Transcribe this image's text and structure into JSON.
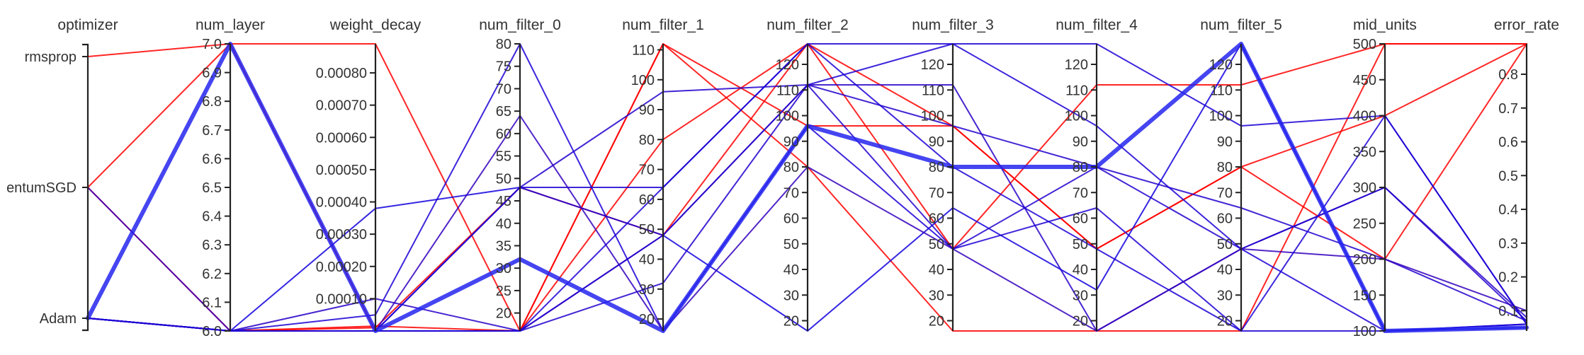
{
  "chart_data": {
    "type": "parallel_coordinates",
    "axes": [
      {
        "key": "optimizer",
        "label": "optimizer",
        "kind": "categorical",
        "categories": [
          "Adam",
          "MomentumSGD",
          "rmsprop"
        ],
        "category_labels": [
          "Adam",
          "entumSGD",
          "rmsprop"
        ]
      },
      {
        "key": "num_layer",
        "label": "num_layer",
        "kind": "numeric",
        "min": 6.0,
        "max": 7.0,
        "ticks": [
          6.0,
          6.1,
          6.2,
          6.3,
          6.4,
          6.5,
          6.6,
          6.7,
          6.8,
          6.9,
          7.0
        ],
        "tick_labels": [
          "6.0",
          "6.1",
          "6.2",
          "6.3",
          "6.4",
          "6.5",
          "6.6",
          "6.7",
          "6.8",
          "6.9",
          "7.0"
        ]
      },
      {
        "key": "weight_decay",
        "label": "weight_decay",
        "kind": "numeric",
        "min": 0.0,
        "max": 0.00089,
        "ticks": [
          0.0001,
          0.0002,
          0.0003,
          0.0004,
          0.0005,
          0.0006,
          0.0007,
          0.0008
        ],
        "tick_labels": [
          "0.00010",
          "0.00020",
          "0.00030",
          "0.00040",
          "0.00050",
          "0.00060",
          "0.00070",
          "0.00080"
        ]
      },
      {
        "key": "num_filter_0",
        "label": "num_filter_0",
        "kind": "numeric",
        "min": 16,
        "max": 80,
        "ticks": [
          20,
          25,
          30,
          35,
          40,
          45,
          50,
          55,
          60,
          65,
          70,
          75,
          80
        ],
        "tick_labels": [
          "20",
          "25",
          "30",
          "35",
          "40",
          "45",
          "50",
          "55",
          "60",
          "65",
          "70",
          "75",
          "80"
        ]
      },
      {
        "key": "num_filter_1",
        "label": "num_filter_1",
        "kind": "numeric",
        "min": 16,
        "max": 112,
        "ticks": [
          20,
          30,
          40,
          50,
          60,
          70,
          80,
          90,
          100,
          110
        ],
        "tick_labels": [
          "20",
          "30",
          "40",
          "50",
          "60",
          "70",
          "80",
          "90",
          "100",
          "110"
        ]
      },
      {
        "key": "num_filter_2",
        "label": "num_filter_2",
        "kind": "numeric",
        "min": 16,
        "max": 128,
        "ticks": [
          20,
          30,
          40,
          50,
          60,
          70,
          80,
          90,
          100,
          110,
          120
        ],
        "tick_labels": [
          "20",
          "30",
          "40",
          "50",
          "60",
          "70",
          "80",
          "90",
          "100",
          "110",
          "120"
        ]
      },
      {
        "key": "num_filter_3",
        "label": "num_filter_3",
        "kind": "numeric",
        "min": 16,
        "max": 128,
        "ticks": [
          20,
          30,
          40,
          50,
          60,
          70,
          80,
          90,
          100,
          110,
          120
        ],
        "tick_labels": [
          "20",
          "30",
          "40",
          "50",
          "60",
          "70",
          "80",
          "90",
          "100",
          "110",
          "120"
        ]
      },
      {
        "key": "num_filter_4",
        "label": "num_filter_4",
        "kind": "numeric",
        "min": 16,
        "max": 128,
        "ticks": [
          20,
          30,
          40,
          50,
          60,
          70,
          80,
          90,
          100,
          110,
          120
        ],
        "tick_labels": [
          "20",
          "30",
          "40",
          "50",
          "60",
          "70",
          "80",
          "90",
          "100",
          "110",
          "120"
        ]
      },
      {
        "key": "num_filter_5",
        "label": "num_filter_5",
        "kind": "numeric",
        "min": 16,
        "max": 128,
        "ticks": [
          20,
          30,
          40,
          50,
          60,
          70,
          80,
          90,
          100,
          110,
          120
        ],
        "tick_labels": [
          "20",
          "30",
          "40",
          "50",
          "60",
          "70",
          "80",
          "90",
          "100",
          "110",
          "120"
        ]
      },
      {
        "key": "mid_units",
        "label": "mid_units",
        "kind": "numeric",
        "min": 100,
        "max": 500,
        "ticks": [
          100,
          150,
          200,
          250,
          300,
          350,
          400,
          450,
          500
        ],
        "tick_labels": [
          "100",
          "150",
          "200",
          "250",
          "300",
          "350",
          "400",
          "450",
          "500"
        ]
      },
      {
        "key": "error_rate",
        "label": "error_rate",
        "kind": "numeric",
        "min": 0.04,
        "max": 0.89,
        "ticks": [
          0.1,
          0.2,
          0.3,
          0.4,
          0.5,
          0.6,
          0.7,
          0.8
        ],
        "tick_labels": [
          "0.1",
          "0.2",
          "0.3",
          "0.4",
          "0.5",
          "0.6",
          "0.7",
          "0.8"
        ]
      }
    ],
    "trials": [
      {
        "optimizer": "rmsprop",
        "num_layer": 7.0,
        "weight_decay": 0.00089,
        "num_filter_0": 16,
        "num_filter_1": 112,
        "num_filter_2": 80,
        "num_filter_3": 16,
        "num_filter_4": 16,
        "num_filter_5": 16,
        "mid_units": 500,
        "error_rate": 0.89
      },
      {
        "optimizer": "MomentumSGD",
        "num_layer": 7.0,
        "weight_decay": 0.0,
        "num_filter_0": 16,
        "num_filter_1": 80,
        "num_filter_2": 128,
        "num_filter_3": 96,
        "num_filter_4": 48,
        "num_filter_5": 80,
        "mid_units": 200,
        "error_rate": 0.89
      },
      {
        "optimizer": "MomentumSGD",
        "num_layer": 6.0,
        "weight_decay": 1e-05,
        "num_filter_0": 48,
        "num_filter_1": 48,
        "num_filter_2": 128,
        "num_filter_3": 48,
        "num_filter_4": 112,
        "num_filter_5": 112,
        "mid_units": 500,
        "error_rate": 0.89
      },
      {
        "optimizer": "Adam",
        "num_layer": 6.0,
        "weight_decay": 1.5e-05,
        "num_filter_0": 16,
        "num_filter_1": 112,
        "num_filter_2": 96,
        "num_filter_3": 96,
        "num_filter_4": 48,
        "num_filter_5": 80,
        "mid_units": 400,
        "error_rate": 0.89
      },
      {
        "optimizer": "Adam",
        "num_layer": 7.0,
        "weight_decay": 0.0,
        "num_filter_0": 32,
        "num_filter_1": 16,
        "num_filter_2": 96,
        "num_filter_3": 80,
        "num_filter_4": 80,
        "num_filter_5": 128,
        "mid_units": 100,
        "error_rate": 0.05
      },
      {
        "optimizer": "Adam",
        "num_layer": 6.0,
        "weight_decay": 0.0,
        "num_filter_0": 16,
        "num_filter_1": 48,
        "num_filter_2": 112,
        "num_filter_3": 128,
        "num_filter_4": 128,
        "num_filter_5": 96,
        "mid_units": 400,
        "error_rate": 0.06
      },
      {
        "optimizer": "Adam",
        "num_layer": 6.0,
        "weight_decay": 0.0,
        "num_filter_0": 48,
        "num_filter_1": 96,
        "num_filter_2": 112,
        "num_filter_3": 96,
        "num_filter_4": 80,
        "num_filter_5": 64,
        "mid_units": 200,
        "error_rate": 0.07
      },
      {
        "optimizer": "Adam",
        "num_layer": 6.0,
        "weight_decay": 0.0001,
        "num_filter_0": 16,
        "num_filter_1": 48,
        "num_filter_2": 112,
        "num_filter_3": 112,
        "num_filter_4": 16,
        "num_filter_5": 48,
        "mid_units": 300,
        "error_rate": 0.08
      },
      {
        "optimizer": "Adam",
        "num_layer": 6.0,
        "weight_decay": 0.0,
        "num_filter_0": 48,
        "num_filter_1": 64,
        "num_filter_2": 128,
        "num_filter_3": 128,
        "num_filter_4": 96,
        "num_filter_5": 48,
        "mid_units": 100,
        "error_rate": 0.06
      },
      {
        "optimizer": "Adam",
        "num_layer": 6.0,
        "weight_decay": 0.00038,
        "num_filter_0": 48,
        "num_filter_1": 48,
        "num_filter_2": 16,
        "num_filter_3": 64,
        "num_filter_4": 32,
        "num_filter_5": 128,
        "mid_units": 100,
        "error_rate": 0.05
      },
      {
        "optimizer": "Adam",
        "num_layer": 6.0,
        "weight_decay": 5e-05,
        "num_filter_0": 80,
        "num_filter_1": 16,
        "num_filter_2": 96,
        "num_filter_3": 48,
        "num_filter_4": 64,
        "num_filter_5": 16,
        "mid_units": 100,
        "error_rate": 0.06
      },
      {
        "optimizer": "Adam",
        "num_layer": 6.0,
        "weight_decay": 0.0,
        "num_filter_0": 16,
        "num_filter_1": 32,
        "num_filter_2": 112,
        "num_filter_3": 48,
        "num_filter_4": 80,
        "num_filter_5": 48,
        "mid_units": 300,
        "error_rate": 0.07
      },
      {
        "optimizer": "MomentumSGD",
        "num_layer": 6.0,
        "weight_decay": 0.0,
        "num_filter_0": 64,
        "num_filter_1": 16,
        "num_filter_2": 80,
        "num_filter_3": 48,
        "num_filter_4": 16,
        "num_filter_5": 48,
        "mid_units": 200,
        "error_rate": 0.1
      },
      {
        "optimizer": "Adam",
        "num_layer": 6.0,
        "weight_decay": 0.0,
        "num_filter_0": 16,
        "num_filter_1": 64,
        "num_filter_2": 128,
        "num_filter_3": 80,
        "num_filter_4": 48,
        "num_filter_5": 16,
        "mid_units": 400,
        "error_rate": 0.06
      }
    ]
  },
  "colors": {
    "best": "#2424ee",
    "worst": "#f02020",
    "low": "#0000ee",
    "high": "#ff0000"
  }
}
